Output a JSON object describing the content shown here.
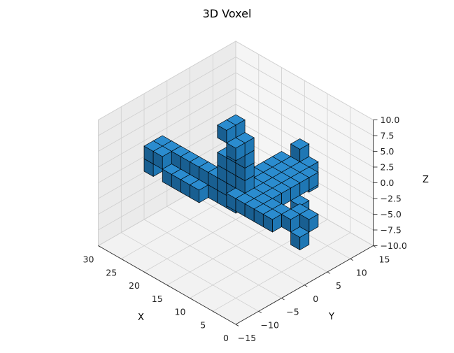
{
  "chart_data": {
    "type": "voxel",
    "title": "3D Voxel",
    "xlabel": "X",
    "ylabel": "Y",
    "zlabel": "Z",
    "xlim": [
      0,
      30
    ],
    "ylim": [
      -15,
      15
    ],
    "zlim": [
      -10,
      10
    ],
    "x_ticks": [
      "0",
      "5",
      "10",
      "15",
      "20",
      "25",
      "30"
    ],
    "y_ticks": [
      "−15",
      "−10",
      "−5",
      "0",
      "5",
      "10",
      "15"
    ],
    "z_ticks": [
      "−10.0",
      "−7.5",
      "−5.0",
      "−2.5",
      "0.0",
      "2.5",
      "5.0",
      "7.5",
      "10.0"
    ],
    "grid": true,
    "voxel_color": "#1f77b4",
    "edge_color": "#000000",
    "voxel_shape": "airplane: fuselage along X at Y≈0, Z≈-2 to 0; wings spanning Y≈-13 to 1 near X≈9-13; vertical tail fin rising to Z≈10 at X≈12-14"
  }
}
